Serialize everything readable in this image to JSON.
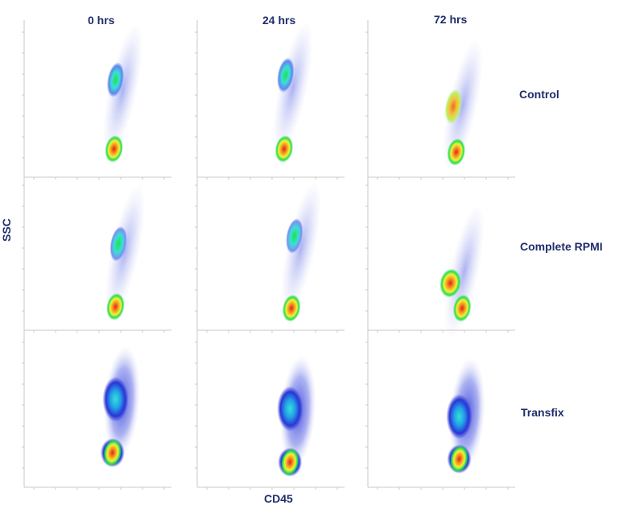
{
  "chart_data": {
    "type": "scatter",
    "subtype": "flow-cytometry-density-grid",
    "columns": [
      "0 hrs",
      "24 hrs",
      "72 hrs"
    ],
    "rows": [
      "Control",
      "Complete  RPMI",
      "Transfix"
    ],
    "xlabel": "CD45",
    "ylabel": "SSC",
    "colors": {
      "label": "#1f2d6b",
      "density_low": "#c9cdf3",
      "density_mid": "#2a35d6",
      "density_cyan": "#38e0d8",
      "density_green": "#22e04a",
      "density_yellow": "#f4f03a",
      "density_high": "#e4221f"
    },
    "panels": [
      {
        "row": "Control",
        "column": "0 hrs",
        "populations": [
          {
            "name": "upper cluster",
            "x": 0.62,
            "y": 0.62,
            "density": "cyan-green"
          },
          {
            "name": "lower cluster",
            "x": 0.61,
            "y": 0.18,
            "density": "red"
          }
        ]
      },
      {
        "row": "Control",
        "column": "24 hrs",
        "populations": [
          {
            "name": "upper cluster",
            "x": 0.6,
            "y": 0.65,
            "density": "cyan"
          },
          {
            "name": "lower cluster",
            "x": 0.59,
            "y": 0.18,
            "density": "red"
          }
        ]
      },
      {
        "row": "Control",
        "column": "72 hrs",
        "populations": [
          {
            "name": "upper cluster",
            "x": 0.58,
            "y": 0.45,
            "density": "orange"
          },
          {
            "name": "lower cluster",
            "x": 0.6,
            "y": 0.16,
            "density": "red"
          }
        ]
      },
      {
        "row": "Complete  RPMI",
        "column": "0 hrs",
        "populations": [
          {
            "name": "upper cluster",
            "x": 0.64,
            "y": 0.55,
            "density": "green"
          },
          {
            "name": "lower cluster",
            "x": 0.62,
            "y": 0.15,
            "density": "red"
          }
        ]
      },
      {
        "row": "Complete  RPMI",
        "column": "24 hrs",
        "populations": [
          {
            "name": "upper cluster",
            "x": 0.66,
            "y": 0.6,
            "density": "green"
          },
          {
            "name": "lower cluster",
            "x": 0.64,
            "y": 0.14,
            "density": "red"
          }
        ]
      },
      {
        "row": "Complete  RPMI",
        "column": "72 hrs",
        "populations": [
          {
            "name": "left cluster",
            "x": 0.56,
            "y": 0.3,
            "density": "red"
          },
          {
            "name": "lower cluster",
            "x": 0.64,
            "y": 0.14,
            "density": "red"
          }
        ]
      },
      {
        "row": "Transfix",
        "column": "0 hrs",
        "populations": [
          {
            "name": "upper cluster",
            "x": 0.62,
            "y": 0.56,
            "density": "cyan"
          },
          {
            "name": "lower cluster",
            "x": 0.6,
            "y": 0.22,
            "density": "red"
          }
        ]
      },
      {
        "row": "Transfix",
        "column": "24 hrs",
        "populations": [
          {
            "name": "upper cluster",
            "x": 0.63,
            "y": 0.5,
            "density": "cyan"
          },
          {
            "name": "lower cluster",
            "x": 0.63,
            "y": 0.16,
            "density": "red"
          }
        ]
      },
      {
        "row": "Transfix",
        "column": "72 hrs",
        "populations": [
          {
            "name": "upper cluster",
            "x": 0.62,
            "y": 0.45,
            "density": "cyan"
          },
          {
            "name": "lower cluster",
            "x": 0.62,
            "y": 0.18,
            "density": "red"
          }
        ]
      }
    ]
  }
}
